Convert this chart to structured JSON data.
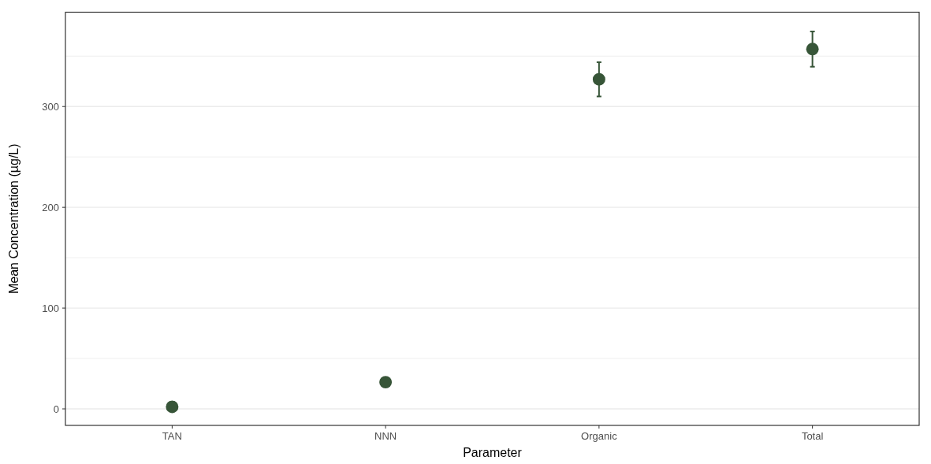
{
  "chart_data": {
    "type": "scatter",
    "xlabel": "Parameter",
    "ylabel": "Mean Concentration (µg/L)",
    "categories": [
      "TAN",
      "NNN",
      "Organic",
      "Total"
    ],
    "values": [
      2,
      26.5,
      327,
      357
    ],
    "errors": [
      null,
      null,
      [
        310,
        344
      ],
      [
        339.5,
        374.5
      ]
    ],
    "color": "#375538",
    "marker": "circle",
    "ylim": [
      -16.4,
      393.6
    ],
    "yticks": [
      0,
      {
        "value": 50,
        "label": null
      },
      100,
      {
        "value": 150,
        "label": null
      },
      200,
      {
        "value": 250,
        "label": null
      },
      300,
      {
        "value": 350,
        "label": null
      }
    ],
    "grid": "y"
  }
}
